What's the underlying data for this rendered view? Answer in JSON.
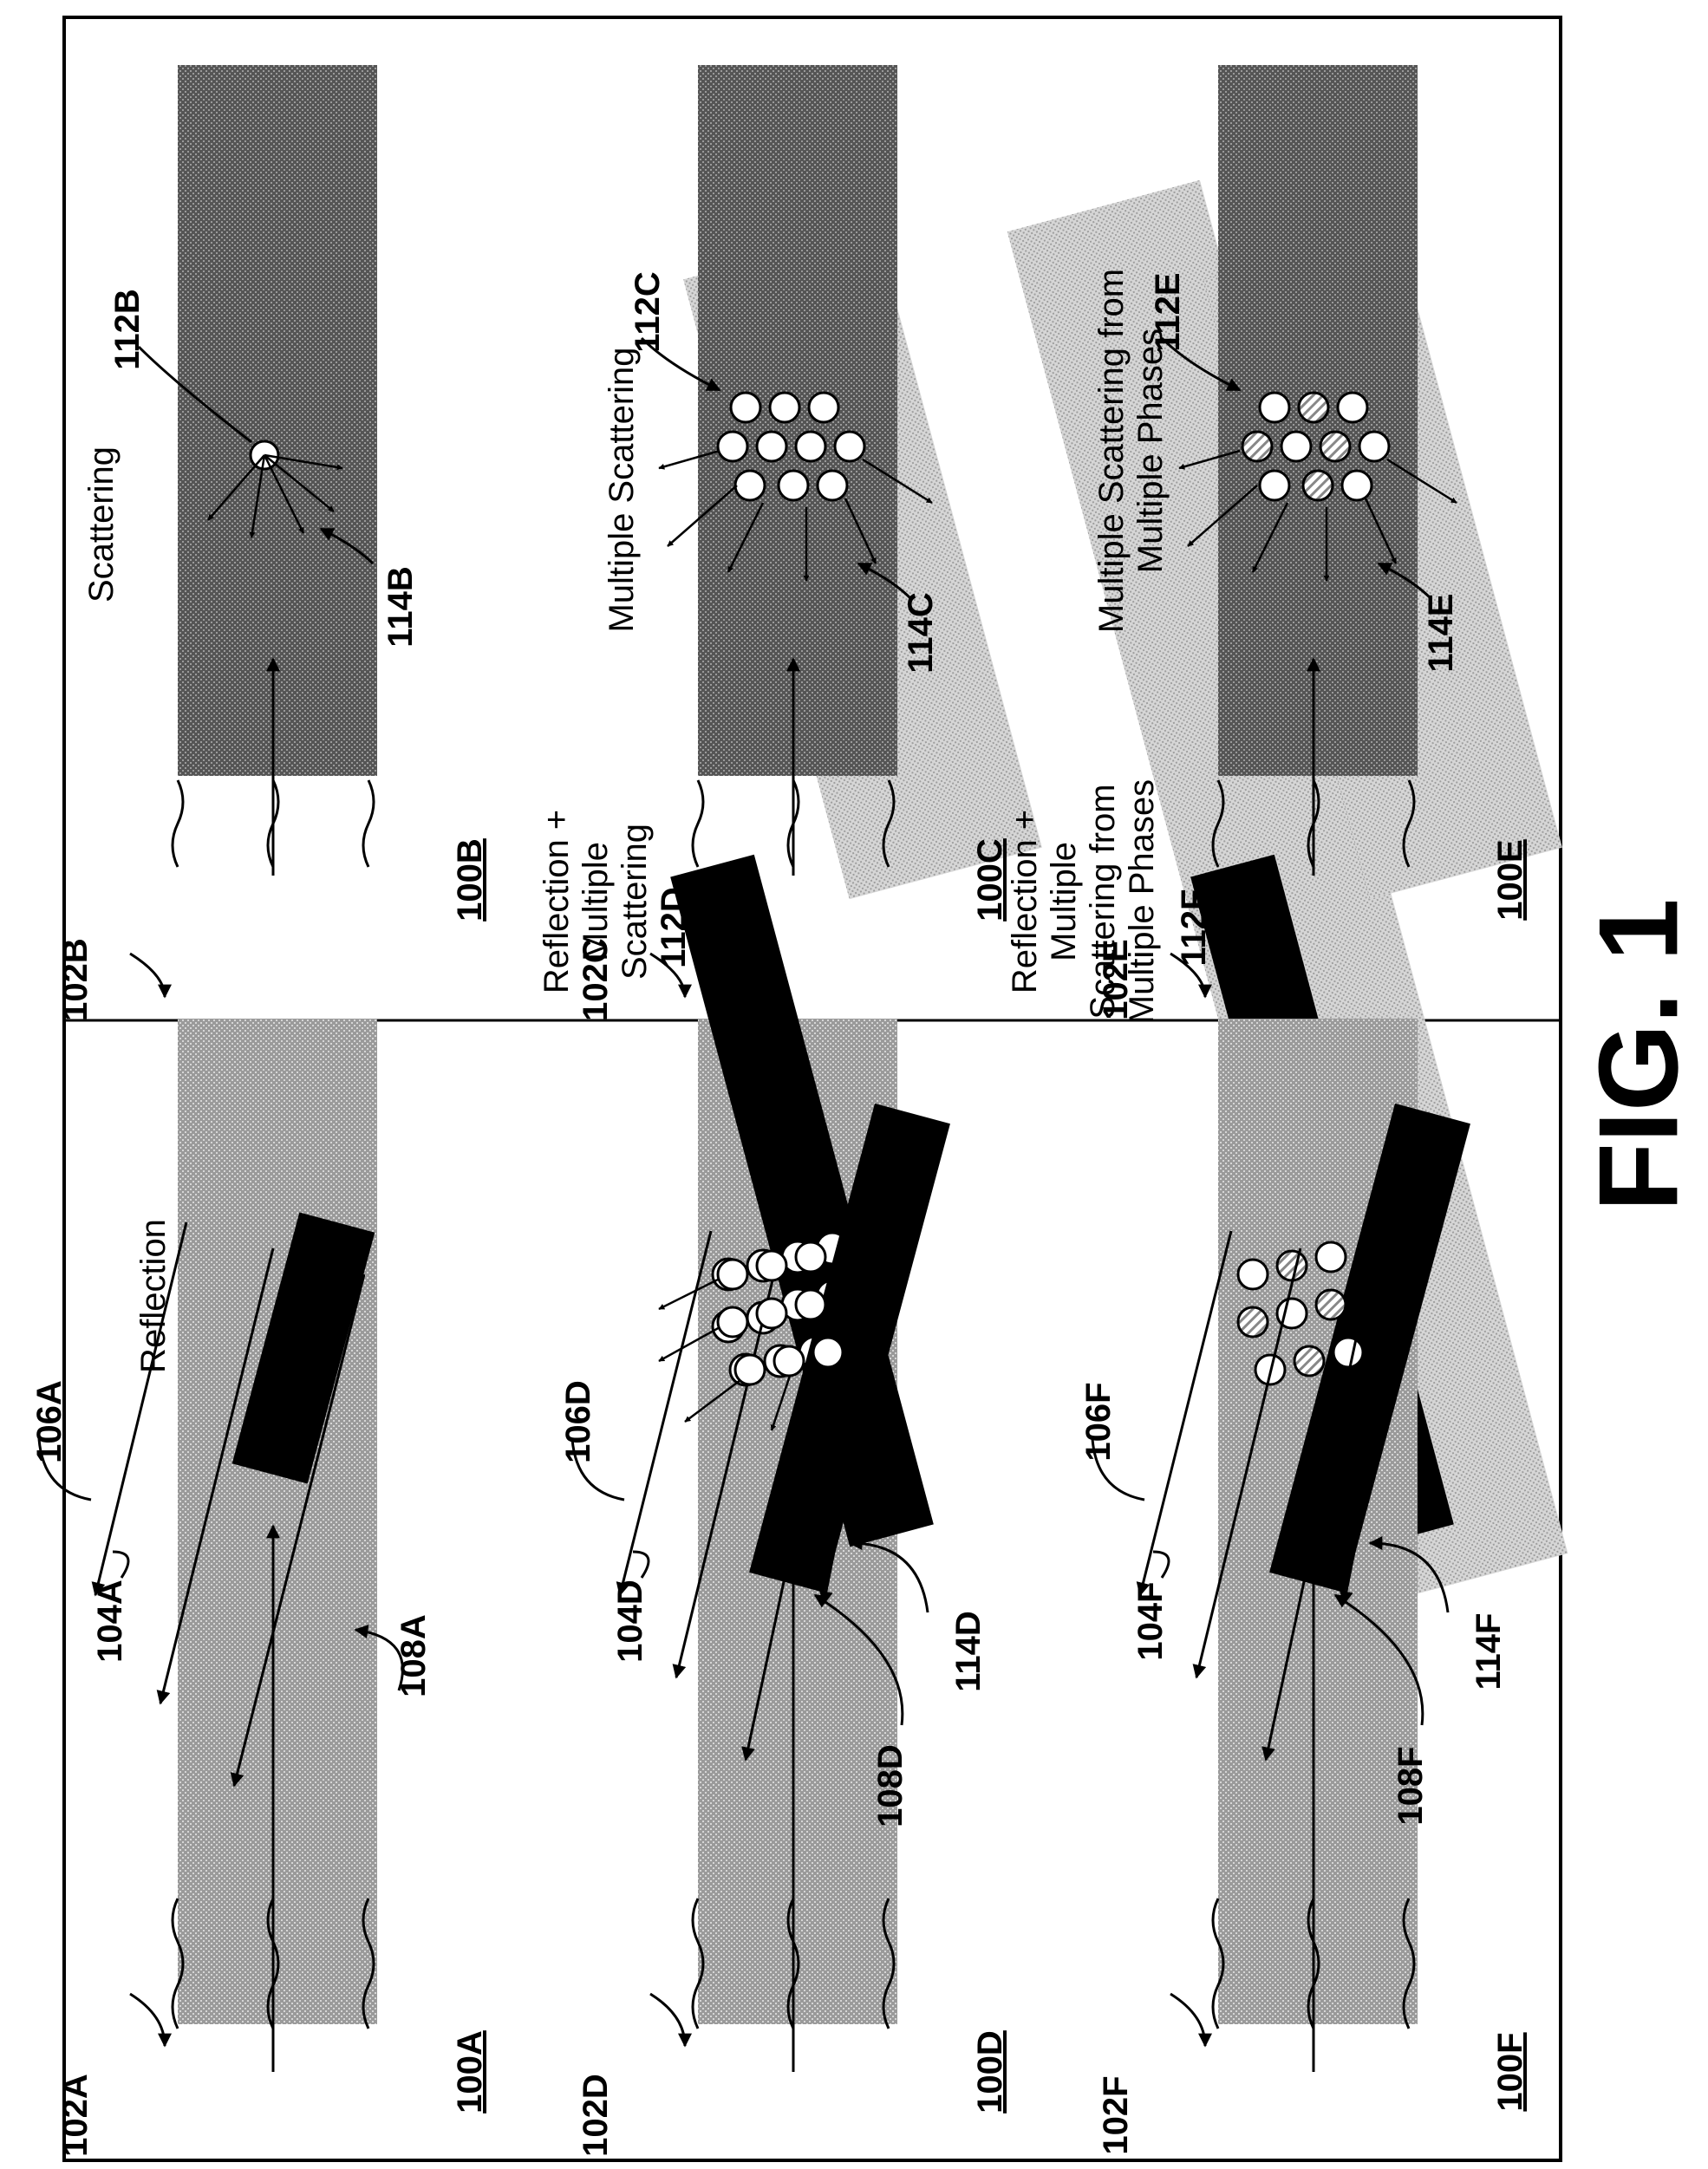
{
  "figure_label": "FIG. 1",
  "panels": {
    "p100A": {
      "id": "100A",
      "source": "102A",
      "surface": "104A",
      "reflector": "106A",
      "medium": "108A",
      "caption": [
        "Reflection"
      ]
    },
    "p100B": {
      "id": "100B",
      "source": "102B",
      "scatterer": "112B",
      "scatter_rays": "114B",
      "caption": [
        "Scattering"
      ]
    },
    "p100C": {
      "id": "100C",
      "source": "102C",
      "scatterer": "112C",
      "scatter_rays": "114C",
      "caption": [
        "Multiple Scattering"
      ]
    },
    "p100D": {
      "id": "100D",
      "source": "102D",
      "surface": "104D",
      "reflector": "106D",
      "medium": "108D",
      "scatterer": "112D",
      "scatter_rays": "114D",
      "caption": [
        "Reflection +",
        "Multiple",
        "Scattering"
      ]
    },
    "p100E": {
      "id": "100E",
      "source": "102E",
      "scatterer": "112E",
      "scatter_rays": "114E",
      "caption": [
        "Multiple Scattering from",
        "Multiple Phases"
      ]
    },
    "p100F": {
      "id": "100F",
      "source": "102F",
      "surface": "104F",
      "reflector": "106F",
      "medium": "108F",
      "scatterer": "112F",
      "scatter_rays": "114F",
      "caption": [
        "Reflection +",
        "Multiple",
        "Scattering from",
        "Multiple Phases"
      ]
    }
  }
}
